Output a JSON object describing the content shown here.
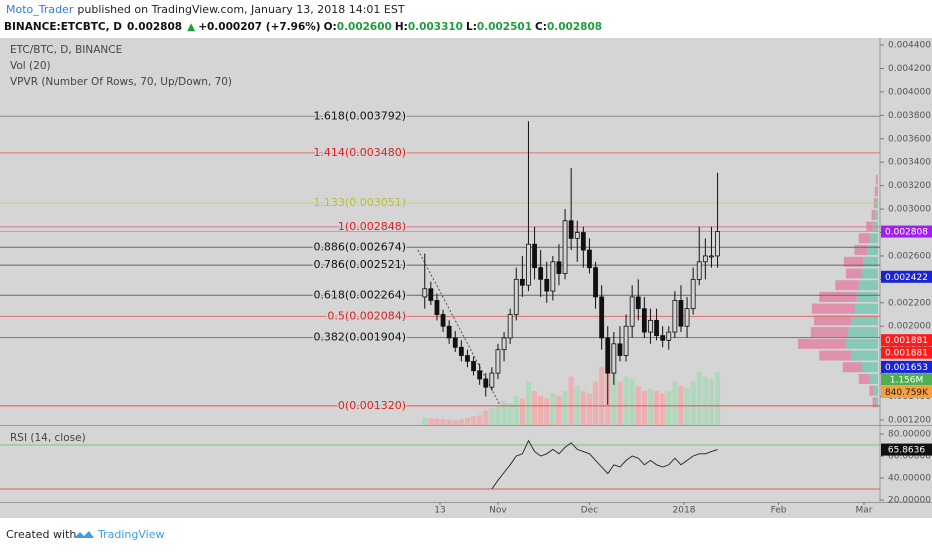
{
  "header": {
    "author": "Moto_Trader",
    "published": "published on TradingView.com, January 13, 2018 14:01 EST",
    "symbol": "BINANCE:ETCBTC, D",
    "last": "0.002808",
    "arrow": "▲",
    "change": "+0.000207 (+7.96%)",
    "ohlc": [
      {
        "key": "O:",
        "value": "0.002600"
      },
      {
        "key": "H:",
        "value": "0.003310"
      },
      {
        "key": "L:",
        "value": "0.002501"
      },
      {
        "key": "C:",
        "value": "0.002808"
      }
    ]
  },
  "footer": {
    "created": "Created with",
    "brand": "TradingView"
  },
  "chart_data": [
    {
      "type": "candlestick",
      "legend": [
        "ETC/BTC, D, BINANCE",
        "Vol (20)",
        "VPVR (Number Of Rows, 70, Up/Down, 70)"
      ],
      "xlim": [
        -144.26,
        144.26
      ],
      "xticks": [
        {
          "value": 0,
          "label": "13"
        },
        {
          "value": 19,
          "label": "Nov"
        },
        {
          "value": 49,
          "label": "Dec"
        },
        {
          "value": 80,
          "label": "2018"
        },
        {
          "value": 111,
          "label": "Feb"
        },
        {
          "value": 139,
          "label": "Mar"
        }
      ],
      "ylim": [
        0.001157,
        0.00446
      ],
      "yticks": [
        {
          "value": 0.0012,
          "label": "0.001200"
        },
        {
          "value": 0.0014,
          "label": "0.001400"
        },
        {
          "value": 0.0016,
          "label": "0.001600"
        },
        {
          "value": 0.0018,
          "label": "0.001800"
        },
        {
          "value": 0.002,
          "label": "0.002000"
        },
        {
          "value": 0.0022,
          "label": "0.002200"
        },
        {
          "value": 0.0024,
          "label": "0.002400"
        },
        {
          "value": 0.0026,
          "label": "0.002600"
        },
        {
          "value": 0.0028,
          "label": "0.002800"
        },
        {
          "value": 0.003,
          "label": "0.003000"
        },
        {
          "value": 0.0032,
          "label": "0.003200"
        },
        {
          "value": 0.0034,
          "label": "0.003400"
        },
        {
          "value": 0.0036,
          "label": "0.003600"
        },
        {
          "value": 0.0038,
          "label": "0.003800"
        },
        {
          "value": 0.004,
          "label": "0.004000"
        },
        {
          "value": 0.0042,
          "label": "0.004200"
        },
        {
          "value": 0.0044,
          "label": "0.004400"
        }
      ],
      "vlim": [
        0,
        8000000
      ],
      "up_color": "#d4d4d4",
      "down_color": "#111111",
      "volume_up_color": "#a9d8b8",
      "volume_down_color": "#f2a9aa",
      "x": [
        -5,
        -3,
        -1,
        1,
        3,
        5,
        7,
        9,
        11,
        13,
        15,
        17,
        19,
        21,
        23,
        25,
        27,
        29,
        31,
        33,
        35,
        37,
        39,
        41,
        43,
        45,
        47,
        49,
        51,
        53,
        55,
        57,
        59,
        61,
        63,
        65,
        67,
        69,
        71,
        73,
        75,
        77,
        79,
        81,
        83,
        85,
        87,
        89,
        91
      ],
      "open": [
        0.00225,
        0.00232,
        0.00222,
        0.0021,
        0.002,
        0.0019,
        0.00182,
        0.00175,
        0.0017,
        0.00162,
        0.00155,
        0.00148,
        0.0016,
        0.0018,
        0.0019,
        0.0021,
        0.0024,
        0.00235,
        0.0027,
        0.0025,
        0.0024,
        0.0023,
        0.00255,
        0.00245,
        0.0029,
        0.00275,
        0.0028,
        0.00265,
        0.0025,
        0.00225,
        0.0019,
        0.0016,
        0.00185,
        0.00175,
        0.002,
        0.00225,
        0.00215,
        0.00195,
        0.00205,
        0.00192,
        0.00188,
        0.00195,
        0.00222,
        0.002,
        0.00215,
        0.0024,
        0.00255,
        0.0026,
        0.0026
      ],
      "high": [
        0.00262,
        0.00238,
        0.00228,
        0.00214,
        0.00205,
        0.00196,
        0.00188,
        0.0018,
        0.00174,
        0.00168,
        0.0016,
        0.00165,
        0.00185,
        0.00195,
        0.00215,
        0.0025,
        0.0026,
        0.00375,
        0.00285,
        0.00265,
        0.00255,
        0.0026,
        0.0027,
        0.003,
        0.00335,
        0.0029,
        0.00285,
        0.00275,
        0.00255,
        0.00235,
        0.002,
        0.00195,
        0.002,
        0.0021,
        0.00235,
        0.0024,
        0.00225,
        0.00215,
        0.00215,
        0.002,
        0.002,
        0.0023,
        0.00235,
        0.00225,
        0.0025,
        0.00285,
        0.00275,
        0.00285,
        0.00331
      ],
      "low": [
        0.00215,
        0.00218,
        0.00205,
        0.00195,
        0.00185,
        0.00178,
        0.0017,
        0.00165,
        0.00158,
        0.0015,
        0.0014,
        0.00145,
        0.00155,
        0.0017,
        0.00185,
        0.00205,
        0.00225,
        0.0023,
        0.0024,
        0.00225,
        0.0022,
        0.00222,
        0.00235,
        0.0024,
        0.00265,
        0.00255,
        0.0025,
        0.00245,
        0.00215,
        0.0018,
        0.00133,
        0.0015,
        0.0017,
        0.0017,
        0.0019,
        0.00205,
        0.0019,
        0.00185,
        0.00188,
        0.00182,
        0.0018,
        0.0019,
        0.00195,
        0.0019,
        0.0021,
        0.00235,
        0.0024,
        0.0025,
        0.0025
      ],
      "close": [
        0.00232,
        0.00222,
        0.0021,
        0.002,
        0.0019,
        0.00182,
        0.00175,
        0.0017,
        0.00162,
        0.00155,
        0.00148,
        0.0016,
        0.0018,
        0.0019,
        0.0021,
        0.0024,
        0.00235,
        0.0027,
        0.0025,
        0.0024,
        0.0023,
        0.00255,
        0.00245,
        0.0029,
        0.00275,
        0.0028,
        0.00265,
        0.0025,
        0.00225,
        0.0019,
        0.0016,
        0.00185,
        0.00175,
        0.002,
        0.00225,
        0.00215,
        0.00195,
        0.00205,
        0.00192,
        0.00188,
        0.00195,
        0.00222,
        0.002,
        0.00215,
        0.0024,
        0.00255,
        0.0026,
        0.0026,
        0.002808
      ],
      "volume": [
        150000,
        140000,
        130000,
        120000,
        110000,
        100000,
        120000,
        150000,
        180000,
        200000,
        300000,
        350000,
        400000,
        500000,
        450000,
        600000,
        550000,
        900000,
        700000,
        600000,
        550000,
        650000,
        600000,
        700000,
        1000000,
        800000,
        700000,
        650000,
        900000,
        1200000,
        1500000,
        1100000,
        900000,
        1000000,
        950000,
        800000,
        700000,
        750000,
        700000,
        650000,
        700000,
        900000,
        800000,
        750000,
        900000,
        1100000,
        1000000,
        950000,
        1100000
      ],
      "fib_levels": [
        {
          "label": "1.618(0.003792)",
          "value": 0.003792,
          "color": "#8a8a8a",
          "text_color": "#111111"
        },
        {
          "label": "1.414(0.003480)",
          "value": 0.00348,
          "color": "#e07070",
          "text_color": "#e02020"
        },
        {
          "label": "1.133(0.003051)",
          "value": 0.003051,
          "color": "#c9d16a",
          "text_color": "#b6c03a"
        },
        {
          "label": "1(0.002848)",
          "value": 0.002848,
          "color": "#e8708e",
          "text_color": "#e02020"
        },
        {
          "label": "0.886(0.002674)",
          "value": 0.002674,
          "color": "#666666",
          "text_color": "#111111"
        },
        {
          "label": "0.786(0.002521)",
          "value": 0.002521,
          "color": "#666666",
          "text_color": "#111111"
        },
        {
          "label": "0.618(0.002264)",
          "value": 0.002264,
          "color": "#666666",
          "text_color": "#111111"
        },
        {
          "label": "0.5(0.002084)",
          "value": 0.002084,
          "color": "#e07070",
          "text_color": "#e02020"
        },
        {
          "label": "0.382(0.001904)",
          "value": 0.001904,
          "color": "#e05050",
          "text_color": "#111111"
        },
        {
          "label": "0(0.001320)",
          "value": 0.00132,
          "color": "#e05050",
          "text_color": "#e02020"
        }
      ],
      "price_line": {
        "value": 0.002808,
        "color": "#c890e0"
      },
      "vpvr": {
        "up_color": "#7fc7b4",
        "down_color": "#e088a8",
        "prices": [
          0.00135,
          0.00145,
          0.00155,
          0.00165,
          0.00175,
          0.00185,
          0.00195,
          0.00205,
          0.00215,
          0.00225,
          0.00235,
          0.00245,
          0.00255,
          0.00265,
          0.00275,
          0.00285,
          0.00295,
          0.00305,
          0.00315,
          0.00325
        ],
        "up": [
          2,
          4,
          8,
          15,
          25,
          30,
          28,
          25,
          22,
          20,
          18,
          15,
          14,
          10,
          8,
          5,
          3,
          2,
          1,
          1
        ],
        "down": [
          3,
          4,
          10,
          18,
          30,
          45,
          35,
          35,
          40,
          35,
          22,
          15,
          18,
          12,
          10,
          6,
          3,
          2,
          2,
          1
        ]
      },
      "badges": [
        {
          "label": "0.002808",
          "value": 0.002808,
          "scale": "price",
          "color": "#a020f0",
          "text_color": "#ffffff"
        },
        {
          "label": "0.002422",
          "value": 0.002422,
          "scale": "price",
          "color": "#1a22d8",
          "text_color": "#ffffff"
        },
        {
          "label": "0.001881",
          "value": 0.001881,
          "scale": "price",
          "color": "#ff1a1a",
          "text_color": "#ffffff"
        },
        {
          "label": "0.001881",
          "value": 0.001881,
          "scale": "price",
          "color": "#ff1a1a",
          "text_color": "#ffffff"
        },
        {
          "label": "1.156M",
          "value": 1156000,
          "scale": "volume",
          "color": "#4caf50",
          "text_color": "#ffffff"
        },
        {
          "label": "0.001653",
          "value": 0.001653,
          "scale": "price",
          "color": "#1a22d8",
          "text_color": "#ffffff"
        },
        {
          "label": "840.759K",
          "value": 840759,
          "scale": "volume",
          "color": "#f5a040",
          "text_color": "#222222"
        }
      ]
    },
    {
      "type": "line",
      "legend": [
        "RSI (14, close)"
      ],
      "xlim": [
        -144.26,
        144.26
      ],
      "ylim": [
        18.2,
        86.4
      ],
      "yticks": [
        {
          "value": 80,
          "label": "80.00000"
        },
        {
          "value": 60,
          "label": "60.00000"
        },
        {
          "value": 40,
          "label": "40.00000"
        },
        {
          "value": 20,
          "label": "20.00000"
        }
      ],
      "levels": [
        {
          "value": 70,
          "color": "#7cc87c"
        },
        {
          "value": 30,
          "color": "#e06060"
        }
      ],
      "color": "#222222",
      "x": [
        17,
        19,
        21,
        23,
        25,
        27,
        29,
        31,
        33,
        35,
        37,
        39,
        41,
        43,
        45,
        47,
        49,
        51,
        53,
        55,
        57,
        59,
        61,
        63,
        65,
        67,
        69,
        71,
        73,
        75,
        77,
        79,
        81,
        83,
        85,
        87,
        89,
        91
      ],
      "values": [
        30,
        38,
        45,
        52,
        60,
        62,
        74,
        64,
        60,
        62,
        66,
        62,
        68,
        72,
        66,
        64,
        62,
        56,
        50,
        44,
        52,
        50,
        56,
        60,
        58,
        52,
        56,
        52,
        50,
        52,
        58,
        52,
        56,
        60,
        62,
        62,
        64,
        65.8636
      ],
      "badges": [
        {
          "label": "65.8636",
          "value": 65.8636,
          "color": "#111111",
          "text_color": "#ffffff"
        }
      ]
    }
  ]
}
